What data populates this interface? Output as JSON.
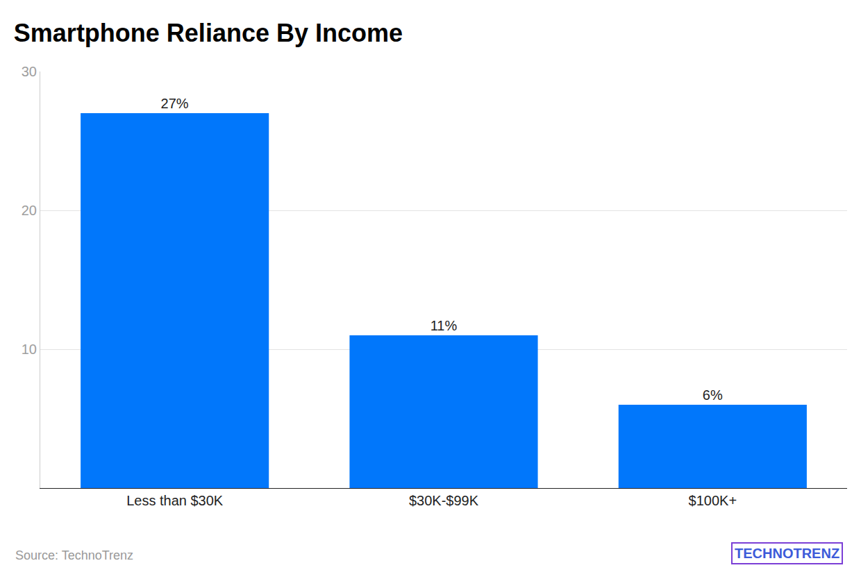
{
  "chart_data": {
    "type": "bar",
    "title": "Smartphone Reliance By Income",
    "categories": [
      "Less than $30K",
      "$30K-$99K",
      "$100K+"
    ],
    "values": [
      27,
      11,
      6
    ],
    "value_labels": [
      "27%",
      "11%",
      "6%"
    ],
    "color": "#0177fb",
    "ylim": [
      0,
      30
    ],
    "yticks": [
      10,
      20,
      30
    ],
    "grid": true,
    "data_labels": true,
    "annotations": [
      "Source: TechnoTrenz",
      "TECHNOTRENZ"
    ]
  }
}
